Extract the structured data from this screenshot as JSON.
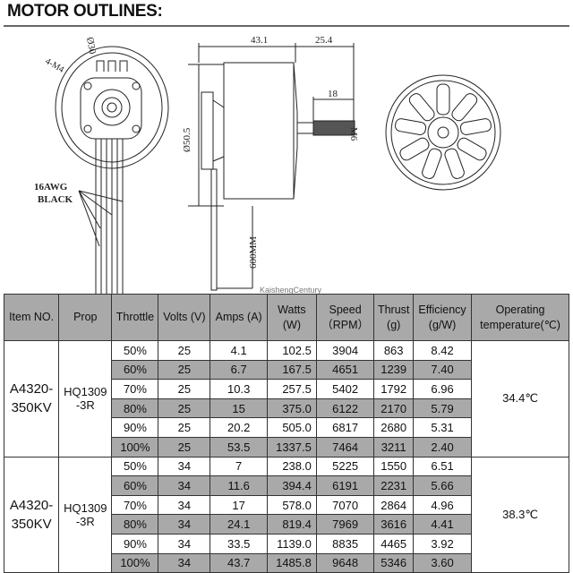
{
  "title": "MOTOR OUTLINES:",
  "drawing": {
    "front_dia": "Ø30",
    "front_holes": "4-M4",
    "length": "43.1",
    "shaft_len": "25.4",
    "thread_len": "18",
    "body_dia": "Ø50.5",
    "thread": "M6",
    "wire_gauge": "16AWG",
    "wire_color": "BLACK",
    "wire_len": "600MM",
    "watermark": "KaishengCentury"
  },
  "table": {
    "headers": [
      "Item NO.",
      "Prop",
      "Throttle",
      "Volts (V)",
      "Amps (A)",
      "Watts\n(W)",
      "Speed\n（RPM）",
      "Thrust\n(g)",
      "Efficiency\n(g/W)",
      "Operating\ntemperature(℃)"
    ],
    "groups": [
      {
        "item": "A4320-\n350KV",
        "prop": "HQ1309\n-3R",
        "temperature": "34.4℃",
        "rows": [
          [
            "50%",
            "25",
            "4.1",
            "102.5",
            "3904",
            "863",
            "8.42"
          ],
          [
            "60%",
            "25",
            "6.7",
            "167.5",
            "4651",
            "1239",
            "7.40"
          ],
          [
            "70%",
            "25",
            "10.3",
            "257.5",
            "5402",
            "1792",
            "6.96"
          ],
          [
            "80%",
            "25",
            "15",
            "375.0",
            "6122",
            "2170",
            "5.79"
          ],
          [
            "90%",
            "25",
            "20.2",
            "505.0",
            "6817",
            "2680",
            "5.31"
          ],
          [
            "100%",
            "25",
            "53.5",
            "1337.5",
            "7464",
            "3211",
            "2.40"
          ]
        ]
      },
      {
        "item": "A4320-\n350KV",
        "prop": "HQ1309\n-3R",
        "temperature": "38.3℃",
        "rows": [
          [
            "50%",
            "34",
            "7",
            "238.0",
            "5225",
            "1550",
            "6.51"
          ],
          [
            "60%",
            "34",
            "11.6",
            "394.4",
            "6191",
            "2231",
            "5.66"
          ],
          [
            "70%",
            "34",
            "17",
            "578.0",
            "7070",
            "2864",
            "4.96"
          ],
          [
            "80%",
            "34",
            "24.1",
            "819.4",
            "7969",
            "3616",
            "4.41"
          ],
          [
            "90%",
            "34",
            "33.5",
            "1139.0",
            "8835",
            "4465",
            "3.92"
          ],
          [
            "100%",
            "34",
            "43.7",
            "1485.8",
            "9648",
            "5346",
            "3.60"
          ]
        ]
      }
    ]
  }
}
